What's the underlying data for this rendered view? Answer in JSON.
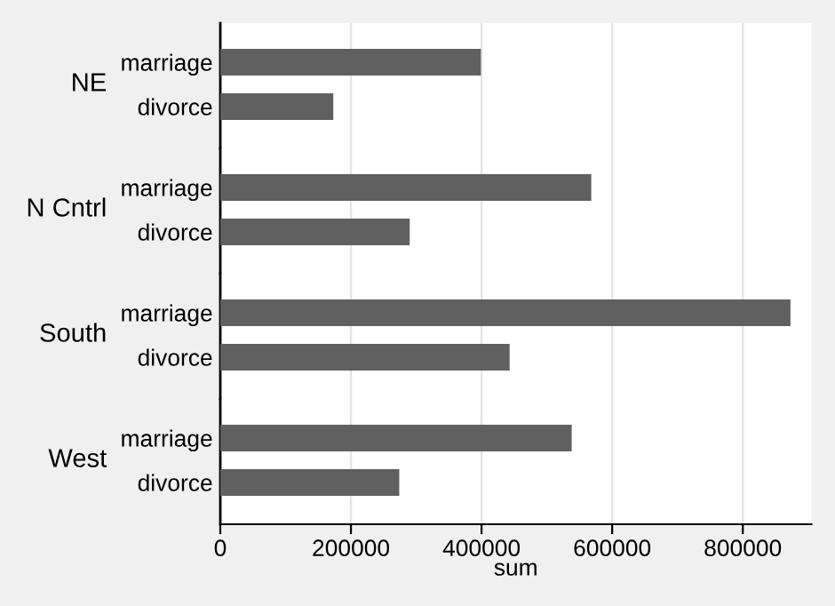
{
  "chart_data": [
    {
      "type": "bar",
      "orientation": "horizontal",
      "title": "NE",
      "categories": [
        "marriage",
        "divorce"
      ],
      "values": [
        399000,
        173000
      ],
      "color": "#606060",
      "xlim": [
        0,
        905000
      ],
      "xticks": [
        0,
        200000,
        400000,
        600000,
        800000
      ],
      "grid": "x",
      "tick_labels": "y"
    },
    {
      "type": "bar",
      "orientation": "horizontal",
      "title": "N Cntrl",
      "categories": [
        "marriage",
        "divorce"
      ],
      "values": [
        568000,
        290000
      ],
      "color": "#606060",
      "xlim": [
        0,
        905000
      ],
      "xticks": [
        0,
        200000,
        400000,
        600000,
        800000
      ],
      "grid": "x",
      "tick_labels": "y"
    },
    {
      "type": "bar",
      "orientation": "horizontal",
      "title": "South",
      "categories": [
        "marriage",
        "divorce"
      ],
      "values": [
        873000,
        443000
      ],
      "color": "#606060",
      "xlim": [
        0,
        905000
      ],
      "xticks": [
        0,
        200000,
        400000,
        600000,
        800000
      ],
      "grid": "x",
      "tick_labels": "y"
    },
    {
      "type": "bar",
      "orientation": "horizontal",
      "title": "West",
      "categories": [
        "marriage",
        "divorce"
      ],
      "values": [
        538000,
        274000
      ],
      "color": "#606060",
      "xlim": [
        0,
        905000
      ],
      "xticks": [
        0,
        200000,
        400000,
        600000,
        800000
      ],
      "grid": "x",
      "xlabel": "sum"
    }
  ]
}
